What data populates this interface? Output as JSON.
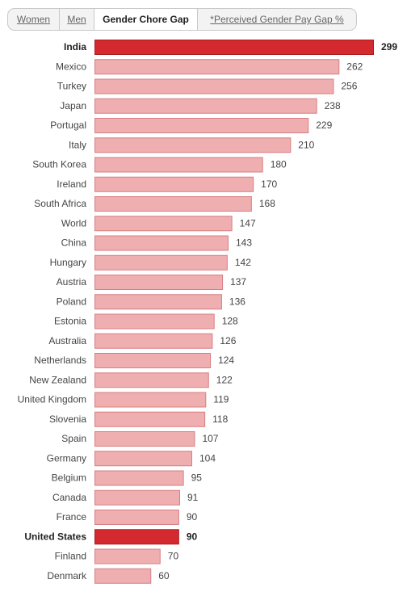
{
  "tabs": [
    {
      "label": "Women",
      "active": false
    },
    {
      "label": "Men",
      "active": false
    },
    {
      "label": "Gender Chore Gap",
      "active": true
    },
    {
      "label": "*Perceived Gender Pay Gap %",
      "active": false
    }
  ],
  "colors": {
    "bar": "#efaeb0",
    "bar_border": "#d77f82",
    "highlight": "#d42a2f",
    "highlight_border": "#a81c20"
  },
  "chart_data": {
    "type": "bar",
    "orientation": "horizontal",
    "categories": [
      "India",
      "Mexico",
      "Turkey",
      "Japan",
      "Portugal",
      "Italy",
      "South Korea",
      "Ireland",
      "South Africa",
      "World",
      "China",
      "Hungary",
      "Austria",
      "Poland",
      "Estonia",
      "Australia",
      "Netherlands",
      "New Zealand",
      "United Kingdom",
      "Slovenia",
      "Spain",
      "Germany",
      "Belgium",
      "Canada",
      "France",
      "United States",
      "Finland",
      "Denmark"
    ],
    "values": [
      299,
      262,
      256,
      238,
      229,
      210,
      180,
      170,
      168,
      147,
      143,
      142,
      137,
      136,
      128,
      126,
      124,
      122,
      119,
      118,
      107,
      104,
      95,
      91,
      90,
      90,
      70,
      60
    ],
    "highlighted": [
      "India",
      "United States"
    ],
    "grid": false,
    "legend": "none"
  }
}
